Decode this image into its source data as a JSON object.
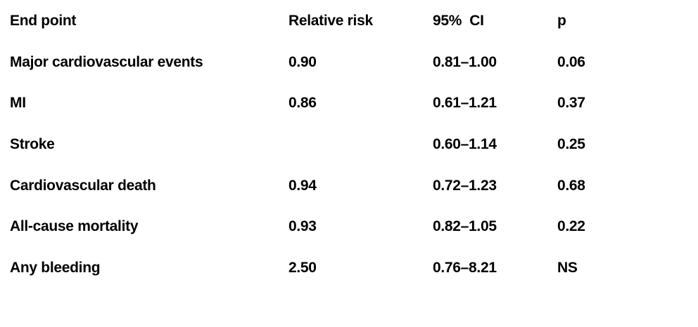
{
  "table": {
    "header": [
      "End point",
      "Relative risk",
      "95%  CI",
      "p"
    ],
    "rows": [
      [
        "Major cardiovascular events",
        "0.90",
        "0.81–1.00",
        "0.06"
      ],
      [
        "MI",
        "0.86",
        "0.61–1.21",
        "0.37"
      ],
      [
        "Stroke",
        null,
        "0.60–1.14",
        "0.25"
      ],
      [
        "Cardiovascular death",
        "0.94",
        "0.72–1.23",
        "0.68"
      ],
      [
        "All-cause mortality",
        "0.93",
        "0.82–1.05",
        "0.22"
      ],
      [
        "Any bleeding",
        "2.50",
        "0.76–8.21",
        "NS"
      ]
    ]
  }
}
